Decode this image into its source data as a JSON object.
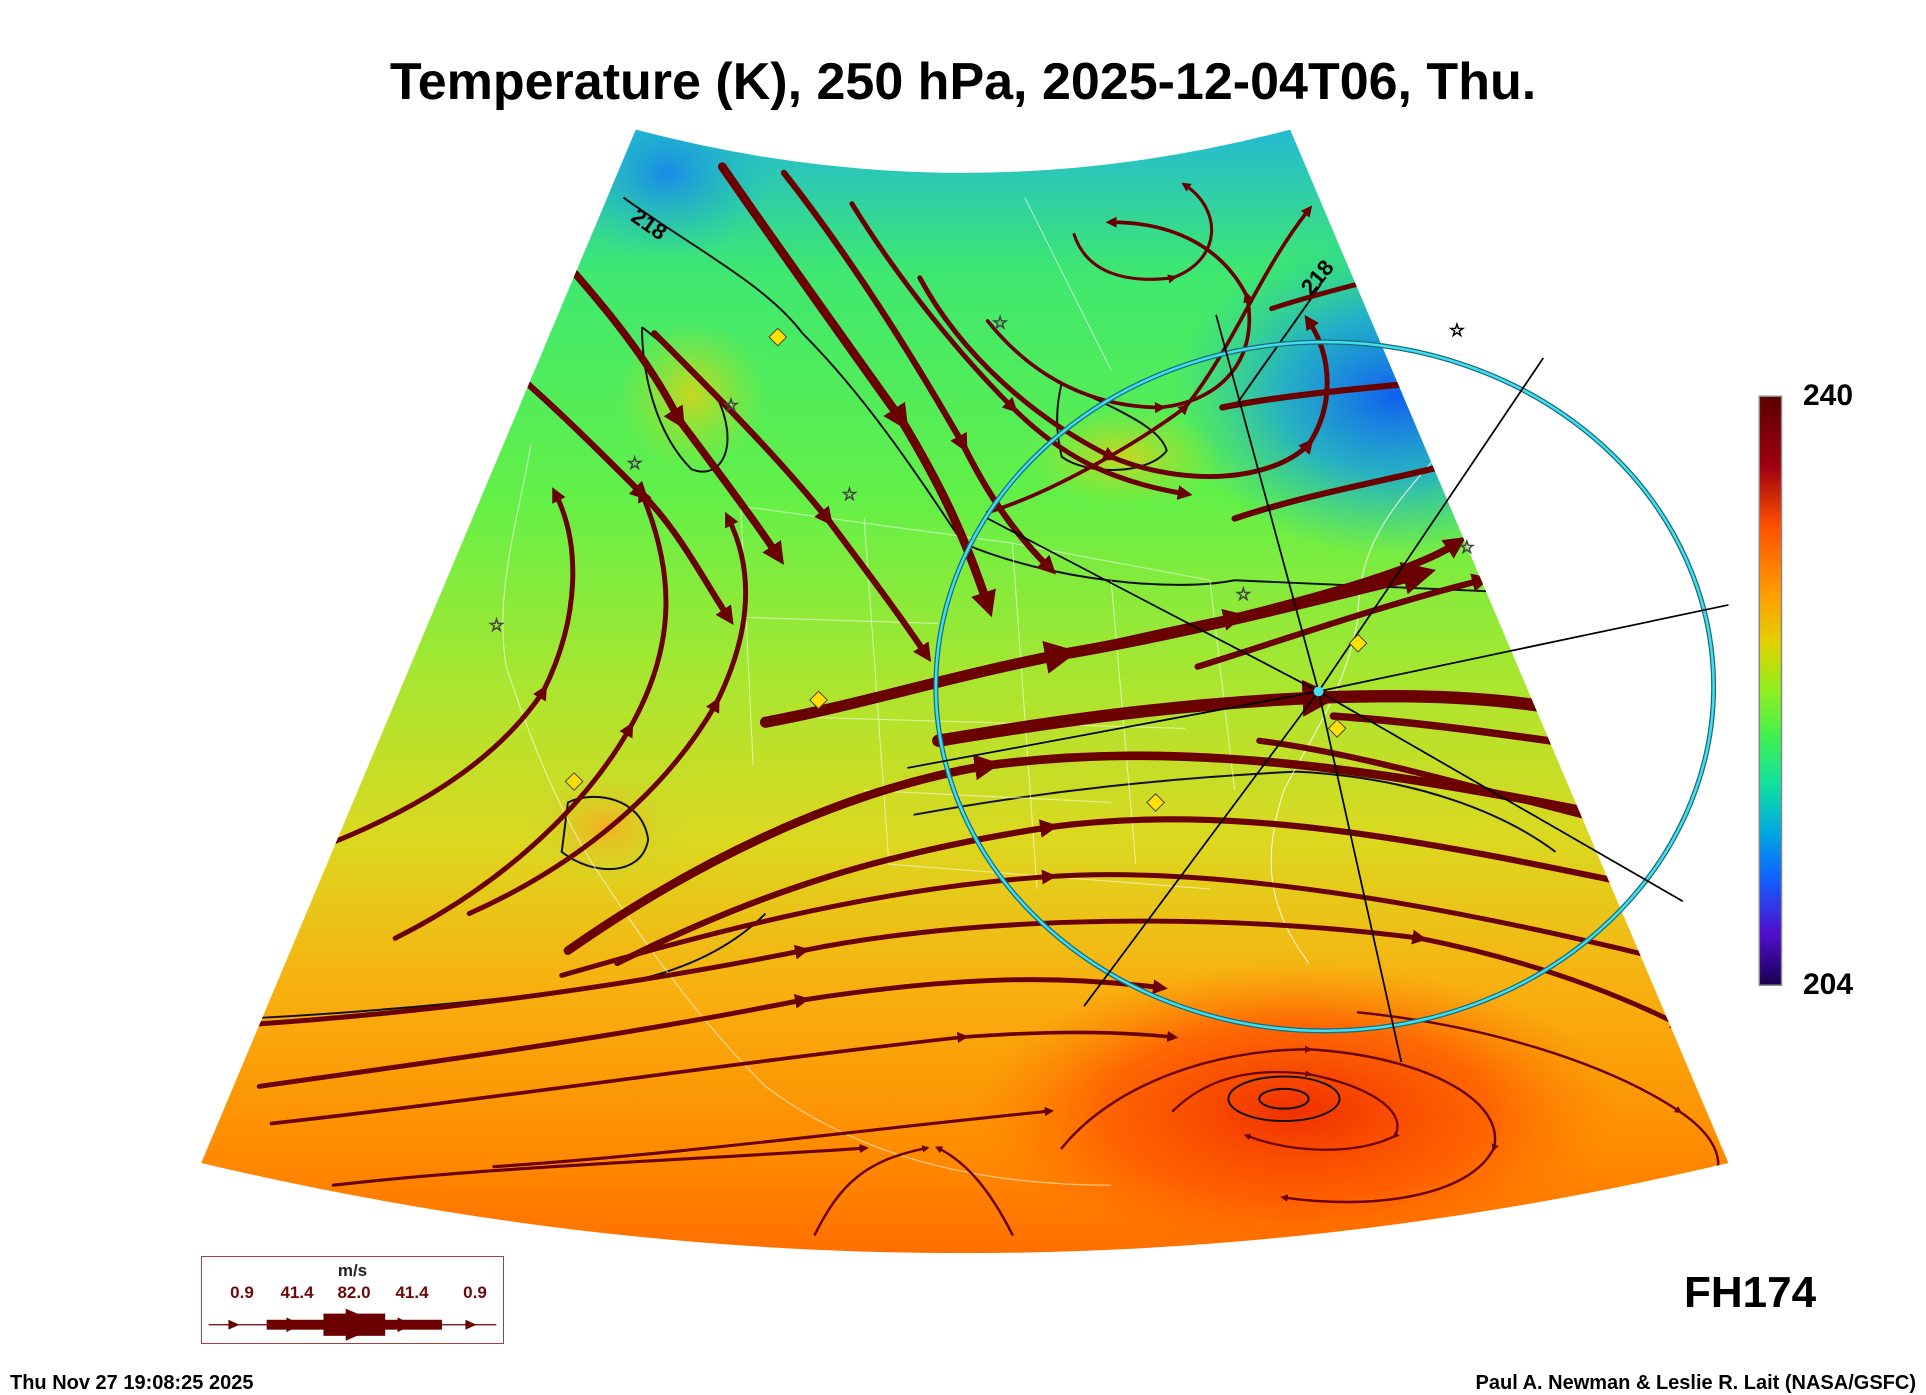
{
  "chart_data": {
    "type": "heatmap",
    "title": "Temperature (K), 250 hPa, 2025-12-04T06, Thu.",
    "variable": "Temperature (K)",
    "level": "250 hPa",
    "valid_time": "2025-12-04T06, Thu.",
    "colorbar": {
      "min": 204,
      "max": 240,
      "min_label": "204",
      "max_label": "240",
      "colormap": "rainbow (purple-blue-green-yellow-orange-dark red)"
    },
    "contour_labels": [
      "218",
      "218"
    ],
    "overlay": "wind streamlines, width scaled by speed",
    "legend": {
      "unit": "m/s",
      "values": [
        "0.9",
        "41.4",
        "82.0",
        "41.4",
        "0.9"
      ]
    },
    "forecast_hour": "FH174"
  },
  "footer": {
    "timestamp": "Thu Nov 27 19:08:25 2025",
    "credit": "Paul A. Newman & Leslie R. Lait (NASA/GSFC)"
  },
  "colors": {
    "streamline": "#6a0000",
    "circle": "#2ec8d8",
    "marker_diamond": "#ffe000"
  }
}
